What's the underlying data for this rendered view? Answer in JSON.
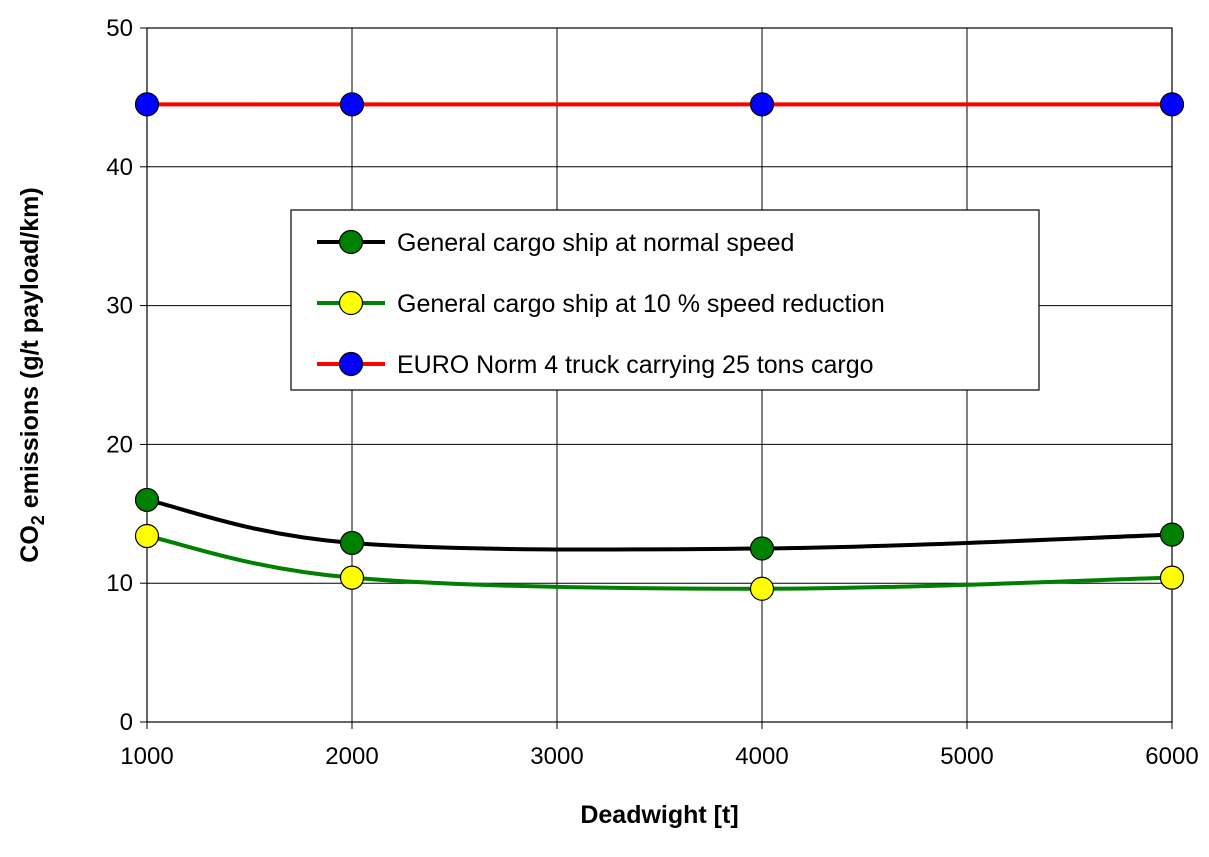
{
  "chart_data": {
    "type": "line",
    "title": "",
    "xlabel": "Deadwight [t]",
    "ylabel_prefix": "CO",
    "ylabel_subscript": "2",
    "ylabel_suffix": " emissions (g/t payload/km)",
    "xlim": [
      1000,
      6000
    ],
    "ylim": [
      0,
      50
    ],
    "xticks": [
      1000,
      2000,
      3000,
      4000,
      5000,
      6000
    ],
    "yticks": [
      0,
      10,
      20,
      30,
      40,
      50
    ],
    "grid": true,
    "legend_position": "center",
    "series": [
      {
        "name": "General cargo ship at normal speed",
        "line_color": "#000000",
        "marker_color": "#008000",
        "x": [
          1000,
          2000,
          4000,
          6000
        ],
        "y": [
          16.0,
          12.9,
          12.5,
          13.5
        ]
      },
      {
        "name": "General cargo ship at 10 % speed reduction",
        "line_color": "#008000",
        "marker_color": "#ffff00",
        "x": [
          1000,
          2000,
          4000,
          6000
        ],
        "y": [
          13.4,
          10.4,
          9.6,
          10.4
        ]
      },
      {
        "name": "EURO Norm 4 truck carrying 25 tons cargo",
        "line_color": "#ff0000",
        "marker_color": "#0000ff",
        "x": [
          1000,
          2000,
          4000,
          6000
        ],
        "y": [
          44.5,
          44.5,
          44.5,
          44.5
        ]
      }
    ]
  }
}
